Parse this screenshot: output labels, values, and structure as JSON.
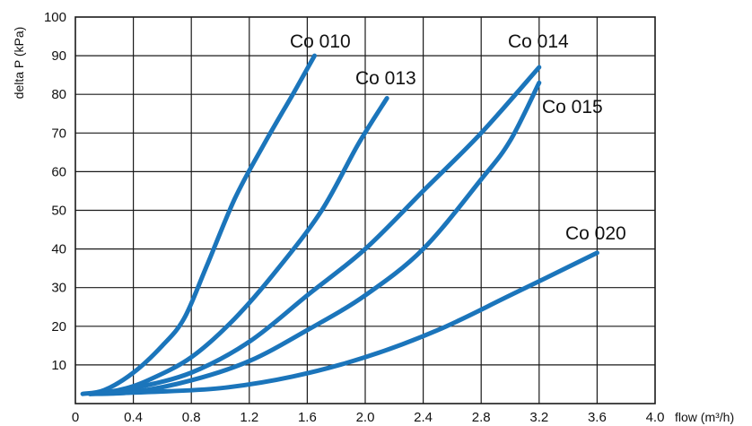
{
  "chart_data": {
    "type": "line",
    "xlabel": "flow (m³/h)",
    "ylabel": "delta  P (kPa)",
    "xlim": [
      0,
      4.0
    ],
    "ylim": [
      0,
      100
    ],
    "xticks": [
      "0",
      "0.4",
      "0.8",
      "1.2",
      "1.6",
      "2.0",
      "2.4",
      "2.8",
      "3.2",
      "3.6",
      "4.0"
    ],
    "yticks": [
      "10",
      "20",
      "30",
      "40",
      "50",
      "60",
      "70",
      "80",
      "90",
      "100"
    ],
    "grid": true,
    "legend": "inline labels",
    "color": "#1b75bb",
    "series": [
      {
        "name": "Co 010",
        "x": [
          0.05,
          0.2,
          0.4,
          0.6,
          0.75,
          0.9,
          1.1,
          1.3,
          1.5,
          1.65
        ],
        "y": [
          2.5,
          3.5,
          8,
          15,
          22,
          35,
          53,
          67,
          80,
          90
        ]
      },
      {
        "name": "Co 013",
        "x": [
          0.1,
          0.3,
          0.5,
          0.8,
          1.1,
          1.4,
          1.7,
          1.95,
          2.15
        ],
        "y": [
          2.5,
          3.5,
          6,
          12,
          22,
          35,
          50,
          67,
          79
        ]
      },
      {
        "name": "Co 014",
        "x": [
          0.1,
          0.4,
          0.8,
          1.2,
          1.6,
          2.0,
          2.4,
          2.8,
          3.2
        ],
        "y": [
          2.5,
          4,
          8,
          16,
          28,
          40,
          55,
          70,
          87
        ]
      },
      {
        "name": "Co 015",
        "x": [
          0.1,
          0.4,
          0.8,
          1.2,
          1.6,
          2.0,
          2.4,
          2.8,
          3.0,
          3.2
        ],
        "y": [
          2.5,
          3,
          6,
          11,
          19,
          28,
          40,
          58,
          68,
          83
        ]
      },
      {
        "name": "Co 020",
        "x": [
          0.1,
          0.5,
          1.0,
          1.5,
          2.0,
          2.5,
          3.0,
          3.6
        ],
        "y": [
          2.5,
          3,
          4,
          7,
          12,
          19,
          28,
          39
        ]
      }
    ],
    "labels": [
      {
        "text": "Co 010"
      },
      {
        "text": "Co 013"
      },
      {
        "text": "Co  014"
      },
      {
        "text": "Co 015"
      },
      {
        "text": "Co 020"
      }
    ]
  }
}
